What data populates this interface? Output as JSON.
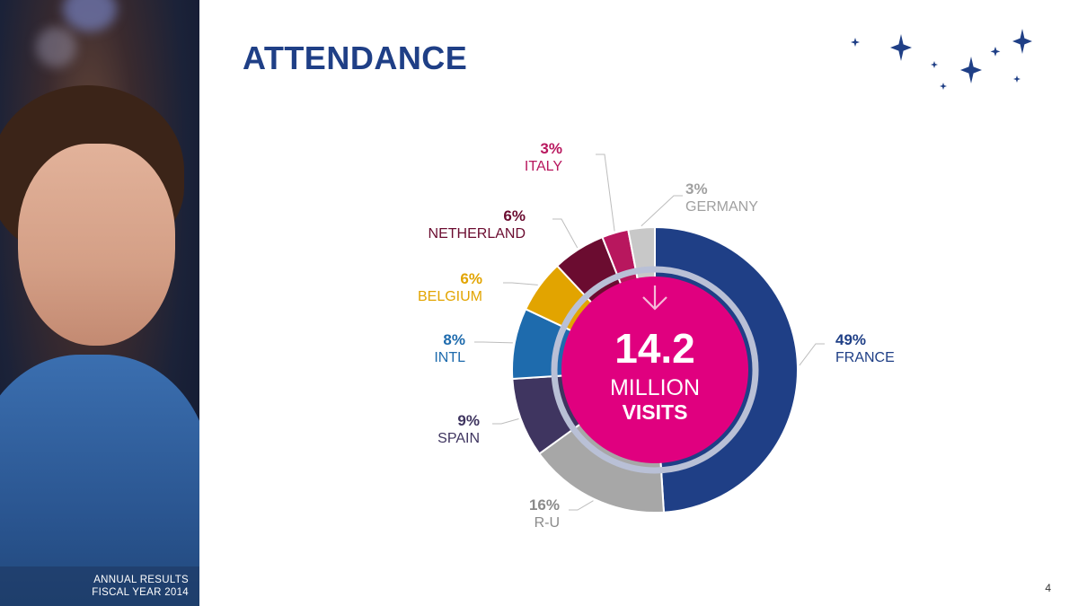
{
  "title": "ATTENDANCE",
  "page_number": "4",
  "caption": {
    "line1": "ANNUAL RESULTS",
    "line2": "FISCAL YEAR 2014"
  },
  "center": {
    "value": "14.2",
    "line1": "MILLION",
    "line2": "VISITS"
  },
  "colors": {
    "title": "#1f3f86",
    "center": "#e0007f",
    "ring": "#b9c0d6"
  },
  "chart_data": {
    "type": "pie",
    "variant": "donut",
    "unit": "%",
    "slices": [
      {
        "name": "FRANCE",
        "value": 49,
        "pct_label": "49%",
        "color": "#1f3f86"
      },
      {
        "name": "R-U",
        "value": 16,
        "pct_label": "16%",
        "color": "#a7a7a7"
      },
      {
        "name": "SPAIN",
        "value": 9,
        "pct_label": "9%",
        "color": "#3f3560"
      },
      {
        "name": "INTL",
        "value": 8,
        "pct_label": "8%",
        "color": "#1e6bad"
      },
      {
        "name": "BELGIUM",
        "value": 6,
        "pct_label": "6%",
        "color": "#e2a400"
      },
      {
        "name": "NETHERLAND",
        "value": 6,
        "pct_label": "6%",
        "color": "#6b0c30"
      },
      {
        "name": "ITALY",
        "value": 3,
        "pct_label": "3%",
        "color": "#b8175e"
      },
      {
        "name": "GERMANY",
        "value": 3,
        "pct_label": "3%",
        "color": "#c8c8c8"
      }
    ]
  }
}
